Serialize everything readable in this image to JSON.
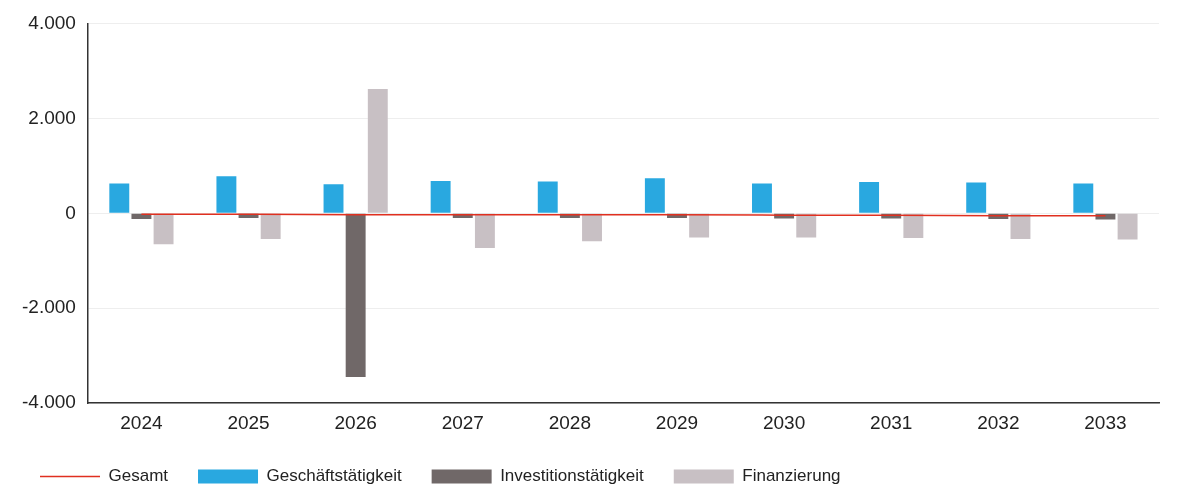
{
  "chart_data": {
    "type": "bar",
    "categories": [
      "2024",
      "2025",
      "2026",
      "2027",
      "2028",
      "2029",
      "2030",
      "2031",
      "2032",
      "2033"
    ],
    "series": [
      {
        "name": "Geschäftstätigkeit",
        "color": "#29a8e0",
        "values": [
          630,
          780,
          610,
          680,
          670,
          740,
          630,
          660,
          650,
          630
        ]
      },
      {
        "name": "Investitionstätigkeit",
        "color": "#706868",
        "values": [
          -120,
          -100,
          -3450,
          -100,
          -100,
          -100,
          -110,
          -110,
          -120,
          -130
        ]
      },
      {
        "name": "Finanzierung",
        "color": "#c8c0c4",
        "values": [
          -650,
          -540,
          2620,
          -730,
          -590,
          -510,
          -510,
          -520,
          -540,
          -550
        ]
      },
      {
        "name": "Gesamt",
        "type": "line",
        "color": "#e03020",
        "values": [
          -20,
          -20,
          -30,
          -30,
          -30,
          -30,
          -40,
          -40,
          -50,
          -50
        ]
      }
    ],
    "ylim": [
      -4000,
      4000
    ],
    "yticks": [
      {
        "value": -4000,
        "label": "-4.000"
      },
      {
        "value": -2000,
        "label": "-2.000"
      },
      {
        "value": 0,
        "label": "0"
      },
      {
        "value": 2000,
        "label": "2.000"
      },
      {
        "value": 4000,
        "label": "4.000"
      }
    ],
    "grid": "y",
    "legend": "bottom",
    "marker": "none"
  }
}
